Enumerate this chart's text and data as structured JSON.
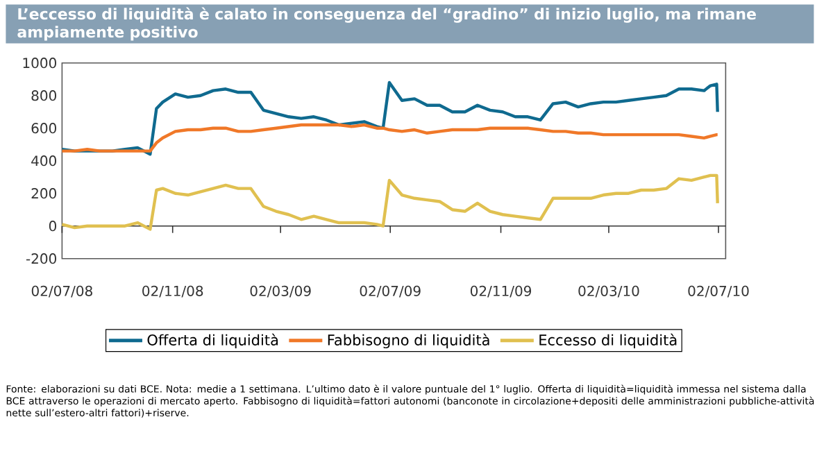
{
  "chart_data": {
    "type": "line",
    "title": "L’eccesso di liquidità è calato in conseguenza del “gradino” di inizio luglio, ma rimane ampiamente positivo",
    "x": [
      "2008-07-02",
      "2008-07-16",
      "2008-07-30",
      "2008-08-13",
      "2008-08-27",
      "2008-09-10",
      "2008-09-24",
      "2008-10-08",
      "2008-10-15",
      "2008-10-22",
      "2008-11-05",
      "2008-11-19",
      "2008-12-03",
      "2008-12-17",
      "2008-12-31",
      "2009-01-14",
      "2009-01-28",
      "2009-02-11",
      "2009-02-25",
      "2009-03-11",
      "2009-03-25",
      "2009-04-08",
      "2009-04-22",
      "2009-05-06",
      "2009-05-20",
      "2009-06-03",
      "2009-06-17",
      "2009-06-24",
      "2009-07-01",
      "2009-07-15",
      "2009-07-29",
      "2009-08-12",
      "2009-08-26",
      "2009-09-09",
      "2009-09-23",
      "2009-10-07",
      "2009-10-21",
      "2009-11-04",
      "2009-11-18",
      "2009-12-02",
      "2009-12-16",
      "2009-12-30",
      "2010-01-13",
      "2010-01-27",
      "2010-02-10",
      "2010-02-24",
      "2010-03-10",
      "2010-03-24",
      "2010-04-07",
      "2010-04-21",
      "2010-05-05",
      "2010-05-19",
      "2010-06-02",
      "2010-06-16",
      "2010-06-23",
      "2010-06-30",
      "2010-07-01"
    ],
    "series": [
      {
        "name": "Offerta di liquidità",
        "color": "#0f6a8f",
        "values": [
          470,
          460,
          460,
          460,
          460,
          470,
          480,
          440,
          720,
          760,
          810,
          790,
          800,
          830,
          840,
          820,
          820,
          710,
          690,
          670,
          660,
          670,
          650,
          620,
          630,
          640,
          610,
          600,
          880,
          770,
          780,
          740,
          740,
          700,
          700,
          740,
          710,
          700,
          670,
          670,
          650,
          750,
          760,
          730,
          750,
          760,
          760,
          770,
          780,
          790,
          800,
          840,
          840,
          830,
          860,
          870,
          700
        ]
      },
      {
        "name": "Fabbisogno di liquidità",
        "color": "#f07828",
        "values": [
          460,
          460,
          470,
          460,
          460,
          460,
          460,
          460,
          510,
          540,
          580,
          590,
          590,
          600,
          600,
          580,
          580,
          590,
          600,
          610,
          620,
          620,
          620,
          620,
          610,
          620,
          600,
          600,
          590,
          580,
          590,
          570,
          580,
          590,
          590,
          590,
          600,
          600,
          600,
          600,
          590,
          580,
          580,
          570,
          570,
          560,
          560,
          560,
          560,
          560,
          560,
          560,
          550,
          540,
          550,
          560,
          560
        ]
      },
      {
        "name": "Eccesso di liquidità",
        "color": "#e0c050",
        "values": [
          10,
          -10,
          0,
          0,
          0,
          0,
          20,
          -20,
          220,
          230,
          200,
          190,
          210,
          230,
          250,
          230,
          230,
          120,
          90,
          70,
          40,
          60,
          40,
          20,
          20,
          20,
          10,
          0,
          280,
          190,
          170,
          160,
          150,
          100,
          90,
          140,
          90,
          70,
          60,
          50,
          40,
          170,
          170,
          170,
          170,
          190,
          200,
          200,
          220,
          220,
          230,
          290,
          280,
          300,
          310,
          310,
          140
        ]
      }
    ],
    "xlim": [
      "2008-07-02",
      "2010-07-10"
    ],
    "xticks": [
      {
        "value": "2008-07-02",
        "label": "02/07/08"
      },
      {
        "value": "2008-11-02",
        "label": "02/11/08"
      },
      {
        "value": "2009-03-02",
        "label": "02/03/09"
      },
      {
        "value": "2009-07-02",
        "label": "02/07/09"
      },
      {
        "value": "2009-11-02",
        "label": "02/11/09"
      },
      {
        "value": "2010-03-02",
        "label": "02/03/10"
      },
      {
        "value": "2010-07-02",
        "label": "02/07/10"
      }
    ],
    "ylim": [
      -200,
      1000
    ],
    "yticks": [
      -200,
      0,
      200,
      400,
      600,
      800,
      1000
    ],
    "ref_lines": [
      {
        "axis": "y",
        "value": 0,
        "color": "#333333"
      }
    ],
    "legend": "bottom",
    "grid": false,
    "marker": "none",
    "line_style": "solid",
    "annotations": [
      "Fonte: elaborazioni su dati BCE. Nota: medie a 1 settimana. L’ultimo dato è il valore puntuale del 1° luglio. Offerta di liquidità=liquidità immessa nel sistema dalla BCE attraverso le operazioni di mercato aperto. Fabbisogno di liquidità=fattori autonomi (banconote in circolazione+depositi delle amministrazioni pubbliche-attività nette sull’estero-altri fattori)+riserve."
    ]
  }
}
